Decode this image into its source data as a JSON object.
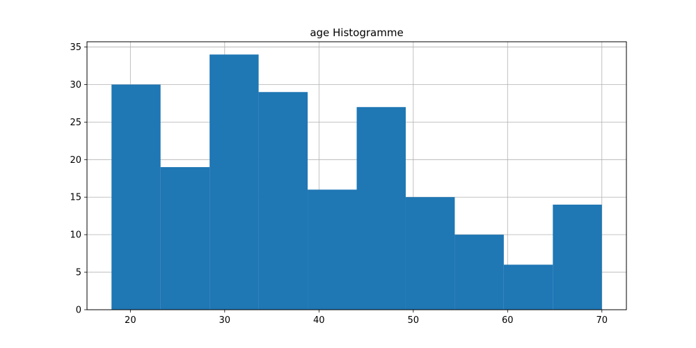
{
  "chart_data": {
    "type": "bar",
    "title": "age Histogramme",
    "xlabel": "",
    "ylabel": "",
    "bin_edges": [
      18,
      23.2,
      28.4,
      33.6,
      38.8,
      44,
      49.2,
      54.4,
      59.6,
      64.8,
      70
    ],
    "values": [
      30,
      19,
      34,
      29,
      16,
      27,
      15,
      10,
      6,
      14
    ],
    "xlim": [
      15.4,
      72.6
    ],
    "ylim": [
      0,
      35.7
    ],
    "xticks": [
      20,
      30,
      40,
      50,
      60,
      70
    ],
    "yticks": [
      0,
      5,
      10,
      15,
      20,
      25,
      30,
      35
    ],
    "grid": true,
    "bar_color": "#1f77b4"
  }
}
